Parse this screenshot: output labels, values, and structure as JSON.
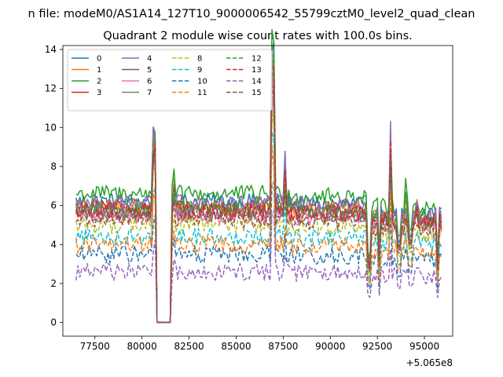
{
  "figure": {
    "suptitle": "n file: modeM0/AS1A14_127T10_9000006542_55799cztM0_level2_quad_clean"
  },
  "chart_data": {
    "type": "line",
    "title": "Quadrant 2 module wise count rates with 100.0s bins.",
    "xlabel": "",
    "ylabel": "",
    "offset_text": "+5.065e8",
    "x_offset": 506500000,
    "xlim": [
      75800,
      96500
    ],
    "ylim": [
      -0.7,
      14.2
    ],
    "x_ticks": [
      77500,
      80000,
      82500,
      85000,
      87500,
      90000,
      92500,
      95000
    ],
    "x_tick_labels": [
      "77500",
      "80000",
      "82500",
      "85000",
      "87500",
      "90000",
      "92500",
      "95000"
    ],
    "y_ticks": [
      0,
      2,
      4,
      6,
      8,
      10,
      12,
      14
    ],
    "y_tick_labels": [
      "0",
      "2",
      "4",
      "6",
      "8",
      "10",
      "12",
      "14"
    ],
    "legend_position": "top-left",
    "x_range_data": [
      76500,
      95900
    ],
    "gap_range": [
      80700,
      81600
    ],
    "spikes": [
      {
        "x": 80650,
        "factor": 1.5
      },
      {
        "x": 81700,
        "factor": 1.15
      },
      {
        "x": 86950,
        "factor": 2.15
      },
      {
        "x": 87600,
        "factor": 1.3
      },
      {
        "x": 93200,
        "factor": 1.75
      },
      {
        "x": 94000,
        "factor": 1.15
      },
      {
        "x": 94600,
        "factor": 1.1
      }
    ],
    "dips": [
      {
        "x": 92050,
        "factor": 0.55
      },
      {
        "x": 92600,
        "factor": 0.6
      },
      {
        "x": 93650,
        "factor": 0.75
      },
      {
        "x": 94250,
        "factor": 0.8
      },
      {
        "x": 95700,
        "factor": 0.55
      }
    ],
    "series": [
      {
        "name": "0",
        "color": "#1f77b4",
        "dashed": false,
        "mean": 6.2
      },
      {
        "name": "1",
        "color": "#ff7f0e",
        "dashed": false,
        "mean": 5.9
      },
      {
        "name": "2",
        "color": "#2ca02c",
        "dashed": false,
        "mean": 6.6
      },
      {
        "name": "3",
        "color": "#d62728",
        "dashed": false,
        "mean": 5.8
      },
      {
        "name": "4",
        "color": "#9467bd",
        "dashed": false,
        "mean": 6.1
      },
      {
        "name": "5",
        "color": "#8c564b",
        "dashed": false,
        "mean": 5.6
      },
      {
        "name": "6",
        "color": "#e377c2",
        "dashed": false,
        "mean": 5.5
      },
      {
        "name": "7",
        "color": "#7f7f7f",
        "dashed": false,
        "mean": 5.7
      },
      {
        "name": "8",
        "color": "#bcbd22",
        "dashed": true,
        "mean": 5.0
      },
      {
        "name": "9",
        "color": "#17becf",
        "dashed": true,
        "mean": 4.4
      },
      {
        "name": "10",
        "color": "#1f77b4",
        "dashed": true,
        "mean": 3.5
      },
      {
        "name": "11",
        "color": "#ff7f0e",
        "dashed": true,
        "mean": 4.0
      },
      {
        "name": "12",
        "color": "#2ca02c",
        "dashed": true,
        "mean": 5.9
      },
      {
        "name": "13",
        "color": "#d62728",
        "dashed": true,
        "mean": 5.7
      },
      {
        "name": "14",
        "color": "#9467bd",
        "dashed": true,
        "mean": 2.6
      },
      {
        "name": "15",
        "color": "#8c564b",
        "dashed": true,
        "mean": 5.3
      }
    ]
  }
}
